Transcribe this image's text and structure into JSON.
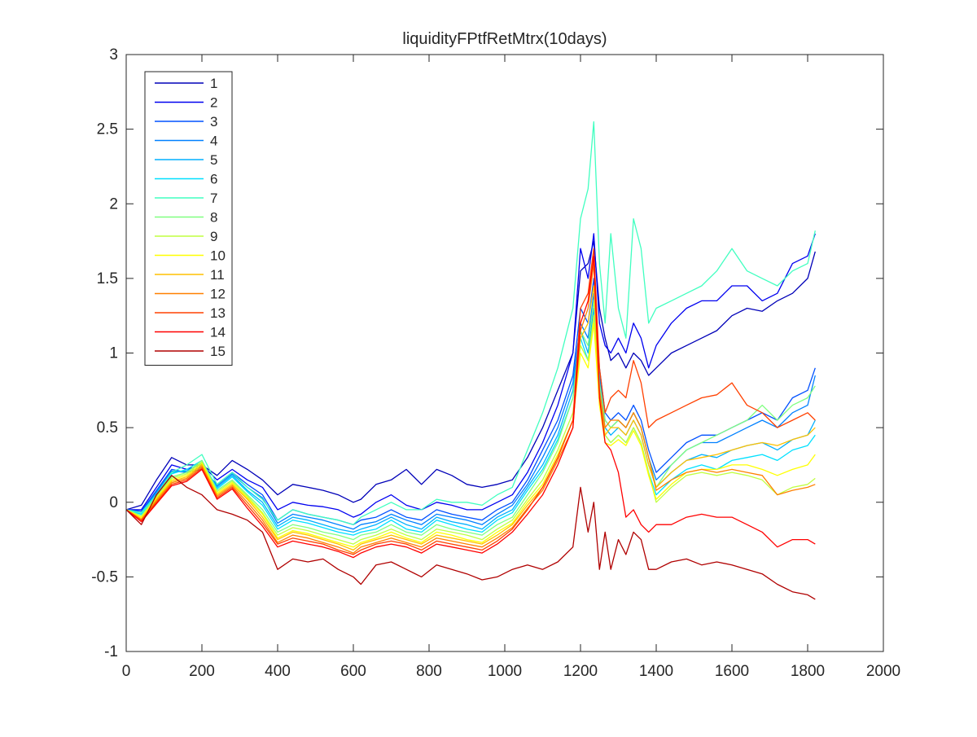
{
  "chart_data": {
    "type": "line",
    "title": "liquidityFPtfRetMtrx(10days)",
    "xlabel": "",
    "ylabel": "",
    "xlim": [
      0,
      2000
    ],
    "ylim": [
      -1,
      3
    ],
    "xticks": [
      "0",
      "200",
      "400",
      "600",
      "800",
      "1000",
      "1200",
      "1400",
      "1600",
      "1800",
      "2000"
    ],
    "yticks": [
      "-1",
      "-0.5",
      "0",
      "0.5",
      "1",
      "1.5",
      "2",
      "2.5",
      "3"
    ],
    "grid": false,
    "legend_position": "top-left",
    "x": [
      0,
      40,
      80,
      120,
      160,
      200,
      240,
      280,
      320,
      360,
      400,
      440,
      480,
      520,
      560,
      600,
      620,
      660,
      700,
      740,
      780,
      820,
      860,
      900,
      940,
      980,
      1020,
      1060,
      1100,
      1140,
      1180,
      1200,
      1220,
      1235,
      1250,
      1265,
      1280,
      1300,
      1320,
      1340,
      1360,
      1380,
      1400,
      1440,
      1480,
      1520,
      1560,
      1600,
      1640,
      1680,
      1720,
      1760,
      1800,
      1820
    ],
    "series": [
      {
        "name": "1",
        "color": "#0000b8",
        "values": [
          -0.05,
          -0.02,
          0.15,
          0.3,
          0.25,
          0.25,
          0.18,
          0.28,
          0.22,
          0.15,
          0.05,
          0.12,
          0.1,
          0.08,
          0.05,
          0.0,
          0.02,
          0.12,
          0.15,
          0.22,
          0.12,
          0.22,
          0.18,
          0.12,
          0.1,
          0.12,
          0.15,
          0.3,
          0.5,
          0.75,
          1.0,
          1.55,
          1.6,
          1.75,
          1.3,
          1.1,
          0.95,
          1.0,
          0.9,
          1.0,
          0.95,
          0.85,
          0.9,
          1.0,
          1.05,
          1.1,
          1.15,
          1.25,
          1.3,
          1.28,
          1.35,
          1.4,
          1.5,
          1.68
        ]
      },
      {
        "name": "2",
        "color": "#0000f0",
        "values": [
          -0.05,
          -0.05,
          0.1,
          0.25,
          0.22,
          0.25,
          0.15,
          0.22,
          0.15,
          0.1,
          -0.05,
          0.0,
          -0.02,
          -0.03,
          -0.05,
          -0.1,
          -0.08,
          0.0,
          0.05,
          -0.02,
          -0.05,
          0.0,
          -0.02,
          -0.05,
          -0.05,
          0.0,
          0.05,
          0.2,
          0.4,
          0.65,
          1.0,
          1.7,
          1.5,
          1.8,
          1.2,
          1.05,
          1.0,
          1.1,
          1.0,
          1.2,
          1.1,
          0.9,
          1.05,
          1.2,
          1.3,
          1.35,
          1.35,
          1.45,
          1.45,
          1.35,
          1.4,
          1.6,
          1.65,
          1.8
        ]
      },
      {
        "name": "3",
        "color": "#0050ff",
        "values": [
          -0.05,
          -0.06,
          0.08,
          0.22,
          0.2,
          0.22,
          0.12,
          0.2,
          0.12,
          0.05,
          -0.12,
          -0.05,
          -0.08,
          -0.1,
          -0.12,
          -0.15,
          -0.12,
          -0.1,
          -0.05,
          -0.1,
          -0.12,
          -0.05,
          -0.08,
          -0.1,
          -0.12,
          -0.05,
          0.0,
          0.15,
          0.35,
          0.55,
          0.85,
          1.3,
          1.2,
          1.5,
          0.9,
          0.6,
          0.55,
          0.6,
          0.55,
          0.65,
          0.55,
          0.35,
          0.2,
          0.3,
          0.4,
          0.45,
          0.45,
          0.5,
          0.55,
          0.6,
          0.55,
          0.7,
          0.75,
          0.9
        ]
      },
      {
        "name": "4",
        "color": "#0080ff",
        "values": [
          -0.05,
          -0.07,
          0.07,
          0.21,
          0.2,
          0.24,
          0.11,
          0.19,
          0.1,
          0.03,
          -0.14,
          -0.08,
          -0.1,
          -0.12,
          -0.15,
          -0.18,
          -0.15,
          -0.13,
          -0.08,
          -0.12,
          -0.15,
          -0.08,
          -0.1,
          -0.12,
          -0.15,
          -0.08,
          -0.02,
          0.12,
          0.3,
          0.5,
          0.8,
          1.2,
          1.1,
          1.4,
          0.85,
          0.55,
          0.5,
          0.55,
          0.5,
          0.6,
          0.5,
          0.3,
          0.15,
          0.25,
          0.35,
          0.4,
          0.4,
          0.45,
          0.5,
          0.55,
          0.5,
          0.6,
          0.65,
          0.85
        ]
      },
      {
        "name": "5",
        "color": "#00b0ff",
        "values": [
          -0.05,
          -0.08,
          0.06,
          0.2,
          0.21,
          0.26,
          0.1,
          0.18,
          0.08,
          0.0,
          -0.16,
          -0.1,
          -0.12,
          -0.15,
          -0.18,
          -0.2,
          -0.18,
          -0.15,
          -0.1,
          -0.15,
          -0.18,
          -0.1,
          -0.13,
          -0.15,
          -0.18,
          -0.1,
          -0.05,
          0.1,
          0.25,
          0.45,
          0.75,
          1.15,
          1.0,
          1.3,
          0.8,
          0.5,
          0.45,
          0.5,
          0.45,
          0.55,
          0.45,
          0.25,
          0.1,
          0.2,
          0.28,
          0.32,
          0.3,
          0.35,
          0.38,
          0.4,
          0.35,
          0.42,
          0.45,
          0.55
        ]
      },
      {
        "name": "6",
        "color": "#00e0ff",
        "values": [
          -0.05,
          -0.08,
          0.05,
          0.19,
          0.22,
          0.28,
          0.09,
          0.17,
          0.07,
          -0.02,
          -0.18,
          -0.12,
          -0.14,
          -0.17,
          -0.2,
          -0.22,
          -0.2,
          -0.18,
          -0.12,
          -0.18,
          -0.2,
          -0.12,
          -0.15,
          -0.18,
          -0.2,
          -0.12,
          -0.07,
          0.08,
          0.22,
          0.42,
          0.7,
          1.1,
          0.95,
          1.25,
          0.75,
          0.45,
          0.4,
          0.45,
          0.4,
          0.5,
          0.4,
          0.2,
          0.05,
          0.15,
          0.22,
          0.25,
          0.22,
          0.28,
          0.3,
          0.32,
          0.28,
          0.35,
          0.38,
          0.45
        ]
      },
      {
        "name": "7",
        "color": "#40ffc0",
        "values": [
          -0.05,
          -0.07,
          0.05,
          0.2,
          0.25,
          0.32,
          0.12,
          0.2,
          0.1,
          0.02,
          -0.12,
          -0.05,
          -0.08,
          -0.1,
          -0.12,
          -0.15,
          -0.1,
          -0.05,
          0.0,
          -0.05,
          -0.05,
          0.02,
          0.0,
          0.0,
          -0.02,
          0.05,
          0.1,
          0.35,
          0.6,
          0.9,
          1.3,
          1.9,
          2.1,
          2.55,
          1.6,
          1.2,
          1.8,
          1.3,
          1.1,
          1.9,
          1.7,
          1.2,
          1.3,
          1.35,
          1.4,
          1.45,
          1.55,
          1.7,
          1.55,
          1.5,
          1.45,
          1.55,
          1.6,
          1.82
        ]
      },
      {
        "name": "8",
        "color": "#80ff80",
        "values": [
          -0.05,
          -0.09,
          0.04,
          0.17,
          0.2,
          0.28,
          0.08,
          0.15,
          0.05,
          -0.05,
          -0.2,
          -0.15,
          -0.17,
          -0.2,
          -0.22,
          -0.25,
          -0.22,
          -0.2,
          -0.15,
          -0.2,
          -0.22,
          -0.15,
          -0.18,
          -0.2,
          -0.22,
          -0.15,
          -0.1,
          0.05,
          0.2,
          0.4,
          0.7,
          1.15,
          1.05,
          1.35,
          0.8,
          0.55,
          0.5,
          0.55,
          0.5,
          0.6,
          0.5,
          0.3,
          0.1,
          0.25,
          0.35,
          0.4,
          0.45,
          0.5,
          0.55,
          0.65,
          0.55,
          0.65,
          0.7,
          0.78
        ]
      },
      {
        "name": "9",
        "color": "#c0ff40",
        "values": [
          -0.05,
          -0.1,
          0.03,
          0.16,
          0.19,
          0.27,
          0.07,
          0.14,
          0.04,
          -0.07,
          -0.22,
          -0.17,
          -0.19,
          -0.22,
          -0.25,
          -0.28,
          -0.25,
          -0.22,
          -0.18,
          -0.22,
          -0.25,
          -0.18,
          -0.2,
          -0.22,
          -0.25,
          -0.18,
          -0.12,
          0.02,
          0.15,
          0.35,
          0.6,
          1.05,
          0.95,
          1.25,
          0.7,
          0.45,
          0.4,
          0.45,
          0.4,
          0.5,
          0.4,
          0.2,
          0.0,
          0.1,
          0.18,
          0.2,
          0.18,
          0.2,
          0.18,
          0.15,
          0.05,
          0.1,
          0.12,
          0.16
        ]
      },
      {
        "name": "10",
        "color": "#ffff00",
        "values": [
          -0.05,
          -0.1,
          0.03,
          0.15,
          0.18,
          0.26,
          0.06,
          0.13,
          0.03,
          -0.08,
          -0.24,
          -0.19,
          -0.21,
          -0.24,
          -0.27,
          -0.3,
          -0.27,
          -0.24,
          -0.2,
          -0.24,
          -0.27,
          -0.2,
          -0.22,
          -0.25,
          -0.27,
          -0.2,
          -0.14,
          0.0,
          0.12,
          0.32,
          0.55,
          1.0,
          0.9,
          1.2,
          0.65,
          0.4,
          0.38,
          0.42,
          0.38,
          0.48,
          0.38,
          0.18,
          0.02,
          0.12,
          0.2,
          0.22,
          0.22,
          0.25,
          0.25,
          0.22,
          0.18,
          0.22,
          0.25,
          0.32
        ]
      },
      {
        "name": "11",
        "color": "#ffc000",
        "values": [
          -0.05,
          -0.11,
          0.02,
          0.14,
          0.17,
          0.25,
          0.05,
          0.12,
          0.02,
          -0.1,
          -0.25,
          -0.2,
          -0.22,
          -0.25,
          -0.28,
          -0.32,
          -0.28,
          -0.25,
          -0.22,
          -0.25,
          -0.28,
          -0.22,
          -0.24,
          -0.26,
          -0.28,
          -0.22,
          -0.15,
          -0.02,
          0.1,
          0.3,
          0.55,
          1.1,
          1.2,
          1.45,
          0.7,
          0.45,
          0.5,
          0.5,
          0.45,
          0.55,
          0.45,
          0.25,
          0.1,
          0.2,
          0.28,
          0.3,
          0.32,
          0.35,
          0.38,
          0.4,
          0.38,
          0.42,
          0.45,
          0.5
        ]
      },
      {
        "name": "12",
        "color": "#ff8000",
        "values": [
          -0.05,
          -0.12,
          0.01,
          0.13,
          0.16,
          0.24,
          0.04,
          0.11,
          0.0,
          -0.12,
          -0.27,
          -0.22,
          -0.24,
          -0.27,
          -0.3,
          -0.34,
          -0.3,
          -0.27,
          -0.24,
          -0.27,
          -0.3,
          -0.24,
          -0.26,
          -0.28,
          -0.3,
          -0.24,
          -0.17,
          -0.04,
          0.08,
          0.28,
          0.5,
          1.15,
          1.3,
          1.6,
          0.75,
          0.5,
          0.55,
          0.55,
          0.5,
          0.6,
          0.5,
          0.3,
          0.08,
          0.15,
          0.2,
          0.22,
          0.2,
          0.22,
          0.2,
          0.18,
          0.05,
          0.08,
          0.1,
          0.12
        ]
      },
      {
        "name": "13",
        "color": "#ff4000",
        "values": [
          -0.05,
          -0.12,
          0.0,
          0.12,
          0.15,
          0.23,
          0.03,
          0.1,
          -0.02,
          -0.14,
          -0.28,
          -0.24,
          -0.26,
          -0.28,
          -0.32,
          -0.35,
          -0.32,
          -0.28,
          -0.26,
          -0.28,
          -0.32,
          -0.26,
          -0.28,
          -0.3,
          -0.32,
          -0.26,
          -0.18,
          -0.05,
          0.1,
          0.3,
          0.55,
          1.3,
          1.4,
          1.7,
          0.9,
          0.6,
          0.7,
          0.75,
          0.7,
          0.95,
          0.8,
          0.5,
          0.55,
          0.6,
          0.65,
          0.7,
          0.72,
          0.8,
          0.65,
          0.6,
          0.5,
          0.55,
          0.6,
          0.55
        ]
      },
      {
        "name": "14",
        "color": "#ff0000",
        "values": [
          -0.05,
          -0.13,
          -0.01,
          0.11,
          0.14,
          0.22,
          0.02,
          0.09,
          -0.04,
          -0.16,
          -0.3,
          -0.26,
          -0.28,
          -0.3,
          -0.33,
          -0.37,
          -0.34,
          -0.3,
          -0.28,
          -0.3,
          -0.34,
          -0.28,
          -0.3,
          -0.32,
          -0.34,
          -0.28,
          -0.2,
          -0.08,
          0.05,
          0.25,
          0.5,
          1.2,
          1.35,
          1.65,
          0.7,
          0.4,
          0.35,
          0.2,
          -0.1,
          -0.05,
          -0.15,
          -0.2,
          -0.15,
          -0.15,
          -0.1,
          -0.08,
          -0.1,
          -0.1,
          -0.15,
          -0.2,
          -0.3,
          -0.25,
          -0.25,
          -0.28
        ]
      },
      {
        "name": "15",
        "color": "#b00000",
        "values": [
          -0.05,
          -0.15,
          0.05,
          0.18,
          0.1,
          0.05,
          -0.05,
          -0.08,
          -0.12,
          -0.2,
          -0.45,
          -0.38,
          -0.4,
          -0.38,
          -0.45,
          -0.5,
          -0.55,
          -0.42,
          -0.4,
          -0.45,
          -0.5,
          -0.42,
          -0.45,
          -0.48,
          -0.52,
          -0.5,
          -0.45,
          -0.42,
          -0.45,
          -0.4,
          -0.3,
          0.1,
          -0.2,
          0.0,
          -0.45,
          -0.2,
          -0.45,
          -0.25,
          -0.35,
          -0.2,
          -0.25,
          -0.45,
          -0.45,
          -0.4,
          -0.38,
          -0.42,
          -0.4,
          -0.42,
          -0.45,
          -0.48,
          -0.55,
          -0.6,
          -0.62,
          -0.65
        ]
      }
    ]
  }
}
